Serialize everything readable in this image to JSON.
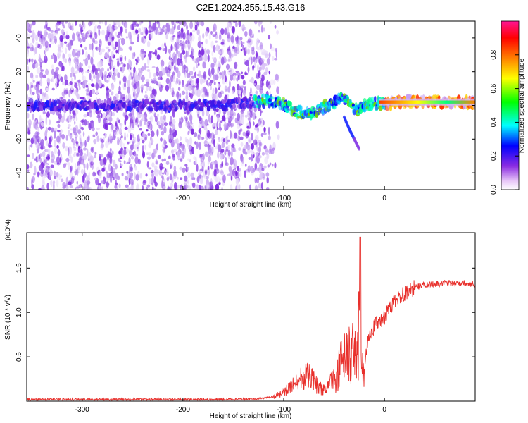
{
  "chart_data": [
    {
      "type": "heatmap",
      "title": "C2E1.2024.355.15.43.G16",
      "xlabel": "Height of straight line (km)",
      "ylabel": "Frequency (Hz)",
      "xlim": [
        -355,
        90
      ],
      "ylim": [
        -50,
        50
      ],
      "xticks": [
        -300,
        -200,
        -100,
        0
      ],
      "yticks": [
        -40,
        -20,
        0,
        20,
        40
      ],
      "colorbar": {
        "label": "Normalized spectral amplitude",
        "range": [
          0,
          1
        ],
        "ticks": [
          0.0,
          0.2,
          0.4,
          0.6,
          0.8
        ],
        "tick_labels": [
          "0.0",
          "0.2",
          "0.4",
          "0.6",
          "0.8"
        ],
        "colormap": [
          "#ffffff",
          "#8a2be2",
          "#0000ff",
          "#00ffff",
          "#00ff00",
          "#ffff00",
          "#ff8000",
          "#ff0000",
          "#ff1493"
        ]
      },
      "ridge": [
        [
          -355,
          0
        ],
        [
          -320,
          0
        ],
        [
          -280,
          0
        ],
        [
          -240,
          0
        ],
        [
          -200,
          0
        ],
        [
          -160,
          0
        ],
        [
          -130,
          2
        ],
        [
          -115,
          3
        ],
        [
          -100,
          1
        ],
        [
          -90,
          -3
        ],
        [
          -80,
          -5
        ],
        [
          -70,
          -4
        ],
        [
          -60,
          -1
        ],
        [
          -50,
          1
        ],
        [
          -45,
          5
        ],
        [
          -40,
          4
        ],
        [
          -35,
          1
        ],
        [
          -30,
          -3
        ],
        [
          -25,
          -2
        ],
        [
          -20,
          0
        ],
        [
          -10,
          1
        ],
        [
          0,
          1
        ],
        [
          20,
          2
        ],
        [
          40,
          2
        ],
        [
          60,
          2
        ],
        [
          90,
          2
        ]
      ],
      "branch": [
        [
          -40,
          -7
        ],
        [
          -35,
          -14
        ],
        [
          -30,
          -20
        ],
        [
          -25,
          -26
        ]
      ],
      "noise_region_xmax": -120
    },
    {
      "type": "line",
      "xlabel": "Height of straight line (km)",
      "ylabel": "SNR (10 * v/v)",
      "multiplier_label": "(x10^4)",
      "xlim": [
        -355,
        90
      ],
      "ylim": [
        0,
        1.9
      ],
      "xticks": [
        -300,
        -200,
        -100,
        0
      ],
      "yticks": [
        0.5,
        1.0,
        1.5
      ],
      "ytick_labels": [
        "0.5",
        "1.0",
        "1.5"
      ],
      "color": "#e8302c",
      "series": [
        {
          "x": [
            -355,
            -300,
            -250,
            -200,
            -150,
            -120,
            -110,
            -100,
            -90,
            -85,
            -80,
            -75,
            -70,
            -65,
            -60,
            -55,
            -50,
            -45,
            -40,
            -35,
            -30,
            -27,
            -25,
            -24,
            -23,
            -22,
            -20,
            -18,
            -15,
            -10,
            -5,
            0,
            5,
            10,
            15,
            20,
            25,
            30,
            35,
            40,
            50,
            60,
            70,
            80,
            90
          ],
          "y": [
            0.02,
            0.02,
            0.02,
            0.02,
            0.02,
            0.03,
            0.05,
            0.1,
            0.18,
            0.22,
            0.28,
            0.3,
            0.22,
            0.15,
            0.12,
            0.18,
            0.25,
            0.4,
            0.45,
            0.5,
            0.55,
            0.6,
            0.8,
            1.85,
            0.5,
            0.35,
            0.35,
            0.6,
            0.75,
            0.85,
            0.9,
            0.95,
            1.05,
            1.12,
            1.18,
            1.22,
            1.25,
            1.28,
            1.3,
            1.31,
            1.32,
            1.33,
            1.33,
            1.33,
            1.32
          ]
        }
      ]
    }
  ]
}
